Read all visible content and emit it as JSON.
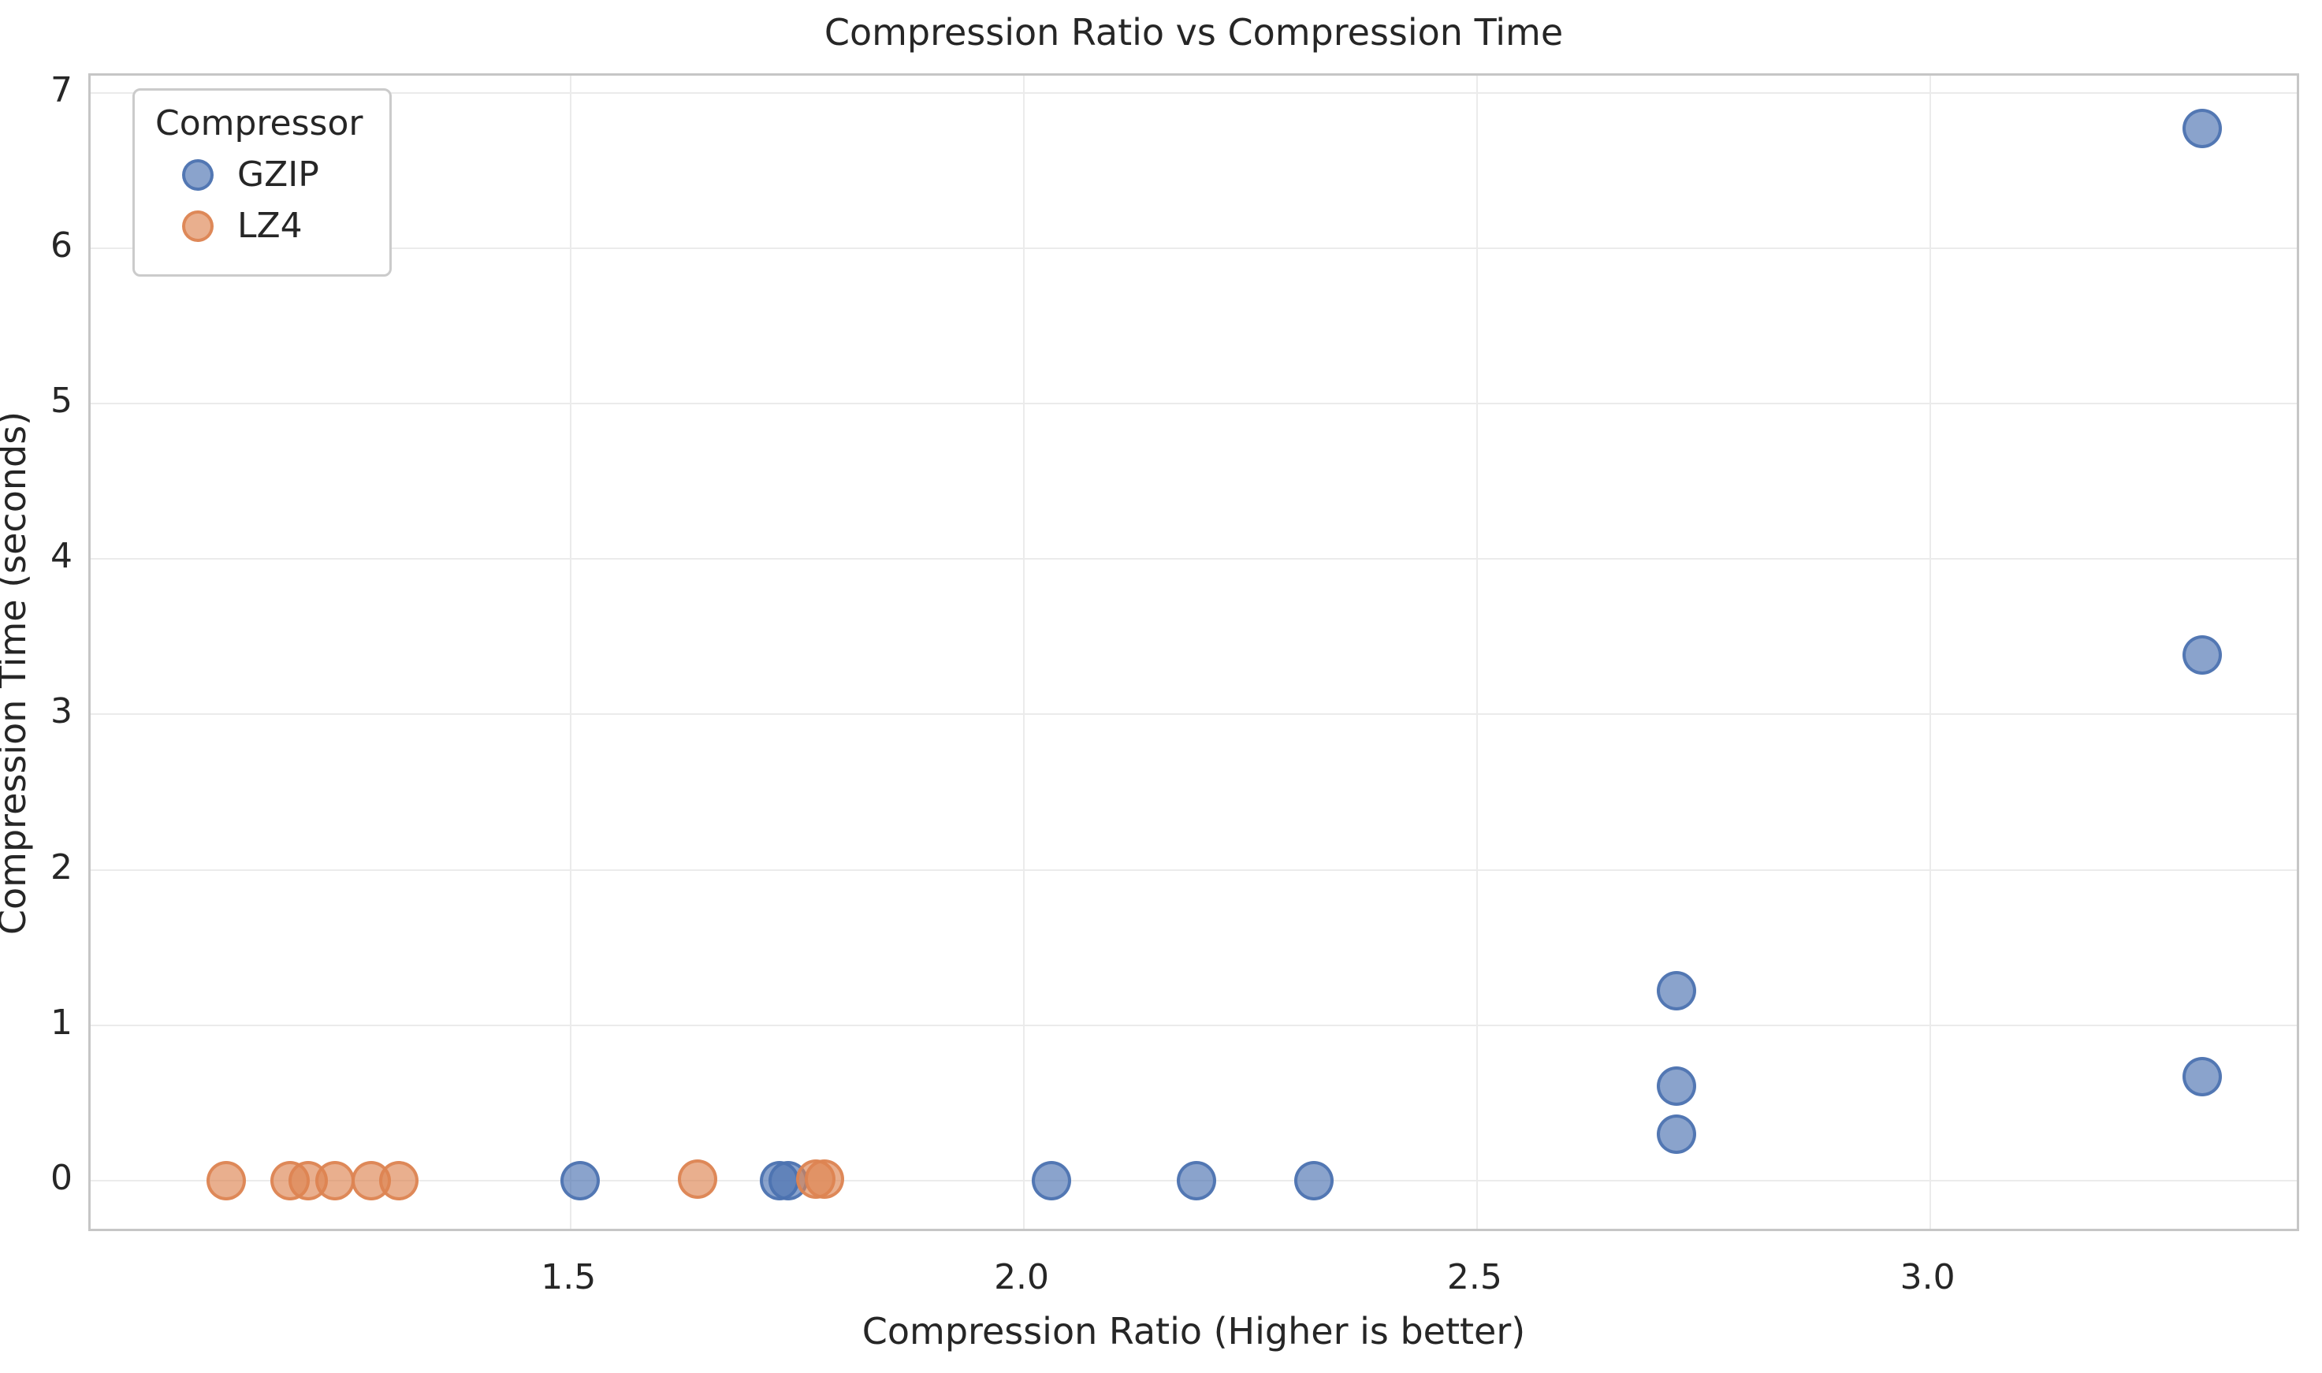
{
  "chart_data": {
    "type": "scatter",
    "title": "Compression Ratio vs Compression Time",
    "xlabel": "Compression Ratio (Higher is better)",
    "ylabel": "Compression Time (seconds)",
    "xlim": [
      0.97,
      3.41
    ],
    "ylim": [
      -0.34,
      7.11
    ],
    "xticks": [
      1.5,
      2.0,
      2.5,
      3.0
    ],
    "xtick_labels": [
      "1.5",
      "2.0",
      "2.5",
      "3.0"
    ],
    "yticks": [
      0,
      1,
      2,
      3,
      4,
      5,
      6,
      7
    ],
    "ytick_labels": [
      "0",
      "1",
      "2",
      "3",
      "4",
      "5",
      "6",
      "7"
    ],
    "grid": true,
    "legend": {
      "title": "Compressor",
      "position": "upper-left",
      "entries": [
        "GZIP",
        "LZ4"
      ]
    },
    "series": [
      {
        "name": "GZIP",
        "color": "#4C72B0",
        "fill_rgba": "rgba(76,114,176,0.65)",
        "edge_rgba": "rgba(76,114,176,0.9)",
        "points": [
          [
            1.51,
            0.0
          ],
          [
            1.73,
            0.0
          ],
          [
            1.74,
            0.0
          ],
          [
            2.03,
            0.0
          ],
          [
            2.19,
            0.0
          ],
          [
            2.32,
            0.0
          ],
          [
            2.72,
            0.3
          ],
          [
            2.72,
            0.61
          ],
          [
            2.72,
            1.22
          ],
          [
            3.3,
            0.67
          ],
          [
            3.3,
            3.38
          ],
          [
            3.3,
            6.77
          ]
        ]
      },
      {
        "name": "LZ4",
        "color": "#DD8452",
        "fill_rgba": "rgba(221,132,82,0.65)",
        "edge_rgba": "rgba(221,132,82,0.9)",
        "points": [
          [
            1.12,
            0.0
          ],
          [
            1.19,
            0.0
          ],
          [
            1.21,
            0.0
          ],
          [
            1.24,
            0.0
          ],
          [
            1.28,
            0.0
          ],
          [
            1.31,
            0.0
          ],
          [
            1.64,
            0.01
          ],
          [
            1.77,
            0.01
          ],
          [
            1.78,
            0.01
          ]
        ]
      }
    ]
  }
}
